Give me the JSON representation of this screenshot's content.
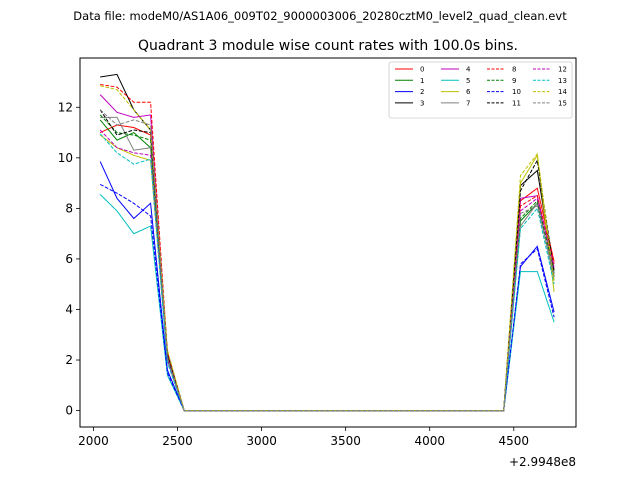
{
  "chart_data": {
    "type": "line",
    "suptitle": "Data file: modeM0/AS1A06_009T02_9000003006_20280cztM0_level2_quad_clean.evt",
    "title": "Quadrant 3 module wise count rates with 100.0s bins.",
    "xlabel": "",
    "ylabel": "",
    "x_offset_label": "+2.9948e8",
    "xlim": [
      1920,
      4870
    ],
    "ylim": [
      -0.65,
      13.95
    ],
    "xticks": [
      2000,
      2500,
      3000,
      3500,
      4000,
      4500
    ],
    "yticks": [
      0,
      2,
      4,
      6,
      8,
      10,
      12
    ],
    "x": [
      2040,
      2140,
      2240,
      2340,
      2440,
      2540,
      2640,
      2740,
      2840,
      2940,
      3040,
      3140,
      3240,
      3340,
      3440,
      3540,
      3640,
      3740,
      3840,
      3940,
      4040,
      4140,
      4240,
      4340,
      4440,
      4540,
      4640,
      4740
    ],
    "legend_position": "upper right",
    "legend_columns": 4,
    "series": [
      {
        "name": "0",
        "color": "#ff0000",
        "dash": "solid",
        "values": [
          11.0,
          11.3,
          11.2,
          10.9,
          2.2,
          0,
          0,
          0,
          0,
          0,
          0,
          0,
          0,
          0,
          0,
          0,
          0,
          0,
          0,
          0,
          0,
          0,
          0,
          0,
          0,
          8.3,
          8.8,
          5.9
        ]
      },
      {
        "name": "1",
        "color": "#008000",
        "dash": "solid",
        "values": [
          11.5,
          10.7,
          11.0,
          10.4,
          2.0,
          0,
          0,
          0,
          0,
          0,
          0,
          0,
          0,
          0,
          0,
          0,
          0,
          0,
          0,
          0,
          0,
          0,
          0,
          0,
          0,
          7.5,
          8.2,
          5.3
        ]
      },
      {
        "name": "2",
        "color": "#0000ff",
        "dash": "solid",
        "values": [
          9.85,
          8.4,
          7.6,
          8.2,
          1.6,
          0,
          0,
          0,
          0,
          0,
          0,
          0,
          0,
          0,
          0,
          0,
          0,
          0,
          0,
          0,
          0,
          0,
          0,
          0,
          0,
          5.7,
          6.5,
          3.9
        ]
      },
      {
        "name": "3",
        "color": "#000000",
        "dash": "solid",
        "values": [
          13.2,
          13.3,
          11.9,
          11.1,
          2.3,
          0,
          0,
          0,
          0,
          0,
          0,
          0,
          0,
          0,
          0,
          0,
          0,
          0,
          0,
          0,
          0,
          0,
          0,
          0,
          0,
          8.9,
          9.5,
          5.4
        ]
      },
      {
        "name": "4",
        "color": "#bf00bf",
        "dash": "solid",
        "values": [
          12.5,
          11.8,
          11.6,
          11.7,
          2.2,
          0,
          0,
          0,
          0,
          0,
          0,
          0,
          0,
          0,
          0,
          0,
          0,
          0,
          0,
          0,
          0,
          0,
          0,
          0,
          0,
          8.4,
          8.5,
          5.6
        ]
      },
      {
        "name": "5",
        "color": "#00bfbf",
        "dash": "solid",
        "values": [
          8.55,
          7.9,
          7.0,
          7.3,
          1.4,
          0,
          0,
          0,
          0,
          0,
          0,
          0,
          0,
          0,
          0,
          0,
          0,
          0,
          0,
          0,
          0,
          0,
          0,
          0,
          0,
          5.5,
          5.5,
          3.5
        ]
      },
      {
        "name": "6",
        "color": "#bfbf00",
        "dash": "solid",
        "values": [
          10.9,
          10.4,
          10.1,
          9.9,
          2.0,
          0,
          0,
          0,
          0,
          0,
          0,
          0,
          0,
          0,
          0,
          0,
          0,
          0,
          0,
          0,
          0,
          0,
          0,
          0,
          0,
          9.0,
          10.1,
          4.7
        ]
      },
      {
        "name": "7",
        "color": "#808080",
        "dash": "solid",
        "values": [
          11.6,
          11.6,
          10.3,
          10.4,
          2.0,
          0,
          0,
          0,
          0,
          0,
          0,
          0,
          0,
          0,
          0,
          0,
          0,
          0,
          0,
          0,
          0,
          0,
          0,
          0,
          0,
          7.3,
          8.2,
          5.2
        ]
      },
      {
        "name": "8",
        "color": "#ff0000",
        "dash": "dashed",
        "values": [
          12.9,
          12.8,
          12.2,
          12.2,
          2.3,
          0,
          0,
          0,
          0,
          0,
          0,
          0,
          0,
          0,
          0,
          0,
          0,
          0,
          0,
          0,
          0,
          0,
          0,
          0,
          0,
          8.1,
          8.5,
          5.8
        ]
      },
      {
        "name": "9",
        "color": "#008000",
        "dash": "dashed",
        "values": [
          11.7,
          11.0,
          10.9,
          10.7,
          2.1,
          0,
          0,
          0,
          0,
          0,
          0,
          0,
          0,
          0,
          0,
          0,
          0,
          0,
          0,
          0,
          0,
          0,
          0,
          0,
          0,
          7.6,
          8.3,
          5.5
        ]
      },
      {
        "name": "10",
        "color": "#0000ff",
        "dash": "dashed",
        "values": [
          8.95,
          8.6,
          8.2,
          7.7,
          1.5,
          0,
          0,
          0,
          0,
          0,
          0,
          0,
          0,
          0,
          0,
          0,
          0,
          0,
          0,
          0,
          0,
          0,
          0,
          0,
          0,
          5.8,
          6.4,
          3.7
        ]
      },
      {
        "name": "11",
        "color": "#000000",
        "dash": "dashed",
        "values": [
          11.9,
          10.9,
          11.1,
          11.0,
          2.2,
          0,
          0,
          0,
          0,
          0,
          0,
          0,
          0,
          0,
          0,
          0,
          0,
          0,
          0,
          0,
          0,
          0,
          0,
          0,
          0,
          8.7,
          9.9,
          5.5
        ]
      },
      {
        "name": "12",
        "color": "#bf00bf",
        "dash": "dashed",
        "values": [
          11.1,
          10.4,
          10.2,
          10.1,
          2.0,
          0,
          0,
          0,
          0,
          0,
          0,
          0,
          0,
          0,
          0,
          0,
          0,
          0,
          0,
          0,
          0,
          0,
          0,
          0,
          0,
          7.9,
          8.4,
          5.7
        ]
      },
      {
        "name": "13",
        "color": "#00bfbf",
        "dash": "dashed",
        "values": [
          10.95,
          10.2,
          9.75,
          9.95,
          1.9,
          0,
          0,
          0,
          0,
          0,
          0,
          0,
          0,
          0,
          0,
          0,
          0,
          0,
          0,
          0,
          0,
          0,
          0,
          0,
          0,
          7.2,
          8.0,
          5.0
        ]
      },
      {
        "name": "14",
        "color": "#bfbf00",
        "dash": "dashed",
        "values": [
          12.85,
          12.7,
          11.9,
          11.1,
          2.4,
          0,
          0,
          0,
          0,
          0,
          0,
          0,
          0,
          0,
          0,
          0,
          0,
          0,
          0,
          0,
          0,
          0,
          0,
          0,
          0,
          9.3,
          10.15,
          5.1
        ]
      },
      {
        "name": "15",
        "color": "#808080",
        "dash": "dashed",
        "values": [
          11.9,
          11.3,
          11.5,
          11.3,
          2.1,
          0,
          0,
          0,
          0,
          0,
          0,
          0,
          0,
          0,
          0,
          0,
          0,
          0,
          0,
          0,
          0,
          0,
          0,
          0,
          0,
          7.8,
          8.1,
          5.4
        ]
      }
    ]
  }
}
